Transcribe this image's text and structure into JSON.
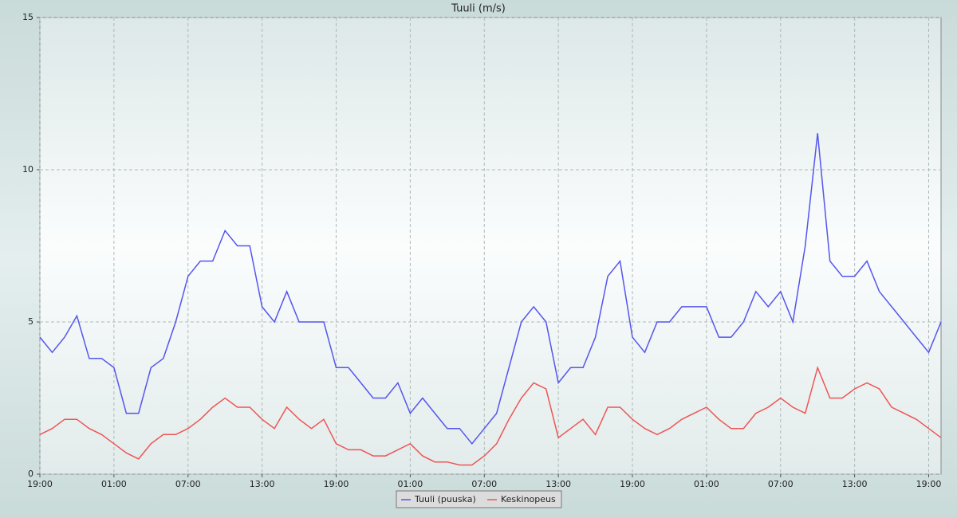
{
  "chart_data": {
    "type": "line",
    "title": "Tuuli (m/s)",
    "x": [
      0,
      1,
      2,
      3,
      4,
      5,
      6,
      7,
      8,
      9,
      10,
      11,
      12,
      13,
      14,
      15,
      16,
      17,
      18,
      19,
      20,
      21,
      22,
      23,
      24,
      25,
      26,
      27,
      28,
      29,
      30,
      31,
      32,
      33,
      34,
      35,
      36,
      37,
      38,
      39,
      40,
      41,
      42,
      43,
      44,
      45,
      46,
      47,
      48,
      49,
      50,
      51,
      52,
      53,
      54,
      55,
      56,
      57,
      58,
      59,
      60,
      61,
      62,
      63,
      64,
      65,
      66,
      67,
      68,
      69,
      70,
      71,
      72,
      73
    ],
    "xlim": [
      0,
      73
    ],
    "xticks": [
      {
        "value": 0,
        "label": "19:00"
      },
      {
        "value": 6,
        "label": "01:00"
      },
      {
        "value": 12,
        "label": "07:00"
      },
      {
        "value": 18,
        "label": "13:00"
      },
      {
        "value": 24,
        "label": "19:00"
      },
      {
        "value": 30,
        "label": "01:00"
      },
      {
        "value": 36,
        "label": "07:00"
      },
      {
        "value": 42,
        "label": "13:00"
      },
      {
        "value": 48,
        "label": "19:00"
      },
      {
        "value": 54,
        "label": "01:00"
      },
      {
        "value": 60,
        "label": "07:00"
      },
      {
        "value": 66,
        "label": "13:00"
      },
      {
        "value": 72,
        "label": "19:00"
      }
    ],
    "ylim": [
      0,
      15
    ],
    "yticks": [
      0,
      5,
      10,
      15
    ],
    "grid": true,
    "legend": "bottom",
    "series": [
      {
        "name": "Tuuli (puuska)",
        "color": "#5555ee",
        "values": [
          4.5,
          4.0,
          4.5,
          5.2,
          3.8,
          3.8,
          3.5,
          2.0,
          2.0,
          3.5,
          3.8,
          5.0,
          6.5,
          7.0,
          7.0,
          8.0,
          7.5,
          7.5,
          5.5,
          5.0,
          6.0,
          5.0,
          5.0,
          5.0,
          3.5,
          3.5,
          3.0,
          2.5,
          2.5,
          3.0,
          2.0,
          2.5,
          2.0,
          1.5,
          1.5,
          1.0,
          1.5,
          2.0,
          3.5,
          5.0,
          5.5,
          5.0,
          3.0,
          3.5,
          3.5,
          4.5,
          6.5,
          7.0,
          4.5,
          4.0,
          5.0,
          5.0,
          5.5,
          5.5,
          5.5,
          4.5,
          4.5,
          5.0,
          6.0,
          5.5,
          6.0,
          5.0,
          7.5,
          11.2,
          7.0,
          6.5,
          6.5,
          7.0,
          6.0,
          5.5,
          5.0,
          4.5,
          4.0,
          5.0
        ]
      },
      {
        "name": "Keskinopeus",
        "color": "#ee5555",
        "values": [
          1.3,
          1.5,
          1.8,
          1.8,
          1.5,
          1.3,
          1.0,
          0.7,
          0.5,
          1.0,
          1.3,
          1.3,
          1.5,
          1.8,
          2.2,
          2.5,
          2.2,
          2.2,
          1.8,
          1.5,
          2.2,
          1.8,
          1.5,
          1.8,
          1.0,
          0.8,
          0.8,
          0.6,
          0.6,
          0.8,
          1.0,
          0.6,
          0.4,
          0.4,
          0.3,
          0.3,
          0.6,
          1.0,
          1.8,
          2.5,
          3.0,
          2.8,
          1.2,
          1.5,
          1.8,
          1.3,
          2.2,
          2.2,
          1.8,
          1.5,
          1.3,
          1.5,
          1.8,
          2.0,
          2.2,
          1.8,
          1.5,
          1.5,
          2.0,
          2.2,
          2.5,
          2.2,
          2.0,
          3.5,
          2.5,
          2.5,
          2.8,
          3.0,
          2.8,
          2.2,
          2.0,
          1.8,
          1.5,
          1.2
        ]
      }
    ]
  }
}
